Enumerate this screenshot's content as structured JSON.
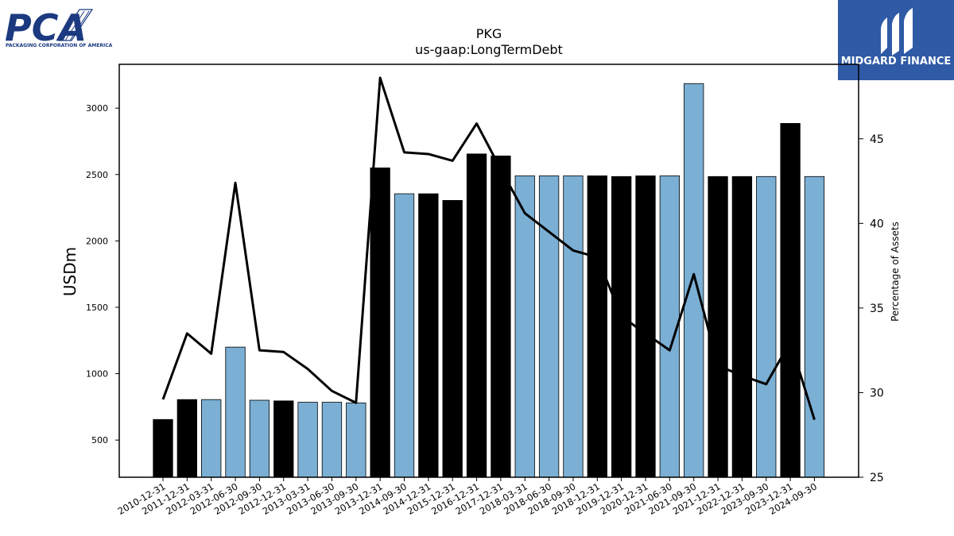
{
  "logos": {
    "left_name": "PCA",
    "left_tagline": "PACKAGING CORPORATION OF AMERICA",
    "right_name": "MIDGARD FINANCE"
  },
  "colors": {
    "bar_light": "#7bafd4",
    "bar_dark": "#000000",
    "line": "#000000",
    "pca_blue": "#1b3a80",
    "midgard_bg": "#2f5aa6"
  },
  "chart_data": {
    "type": "bar",
    "title": "PKG",
    "subtitle": "us-gaap:LongTermDebt",
    "ylabel": "USDm",
    "y2label": "Percentage of Assets",
    "ylim": [
      220,
      3330
    ],
    "y2lim": [
      25,
      49.4
    ],
    "yticks": [
      500,
      1000,
      1500,
      2000,
      2500,
      3000
    ],
    "y2ticks": [
      25,
      30,
      35,
      40,
      45
    ],
    "categories": [
      "2010-12-31",
      "2011-12-31",
      "2012-03-31",
      "2012-06-30",
      "2012-09-30",
      "2012-12-31",
      "2013-03-31",
      "2013-06-30",
      "2013-09-30",
      "2013-12-31",
      "2014-09-30",
      "2014-12-31",
      "2015-12-31",
      "2016-12-31",
      "2017-12-31",
      "2018-03-31",
      "2018-06-30",
      "2018-09-30",
      "2018-12-31",
      "2019-12-31",
      "2020-12-31",
      "2021-06-30",
      "2021-09-30",
      "2021-12-31",
      "2022-12-31",
      "2023-09-30",
      "2023-12-31",
      "2024-09-30"
    ],
    "series": [
      {
        "type": "bar",
        "values": [
          655,
          805,
          805,
          1200,
          800,
          795,
          785,
          785,
          780,
          2550,
          2355,
          2355,
          2305,
          2655,
          2640,
          2490,
          2490,
          2490,
          2490,
          2485,
          2490,
          2490,
          3185,
          2485,
          2485,
          2485,
          2885,
          2485
        ],
        "bar_colors": [
          "dark",
          "dark",
          "light",
          "light",
          "light",
          "dark",
          "light",
          "light",
          "light",
          "dark",
          "light",
          "dark",
          "dark",
          "dark",
          "dark",
          "light",
          "light",
          "light",
          "dark",
          "dark",
          "dark",
          "light",
          "light",
          "dark",
          "dark",
          "light",
          "dark",
          "light"
        ]
      },
      {
        "type": "line",
        "axis": "right",
        "values": [
          29.6,
          33.5,
          32.3,
          42.4,
          32.5,
          32.4,
          31.4,
          30.1,
          29.4,
          48.6,
          44.2,
          44.1,
          43.7,
          45.9,
          43.2,
          40.6,
          39.5,
          38.4,
          38.0,
          34.5,
          33.5,
          32.5,
          37.0,
          31.6,
          31.0,
          30.5,
          33.0,
          28.4
        ]
      }
    ]
  }
}
